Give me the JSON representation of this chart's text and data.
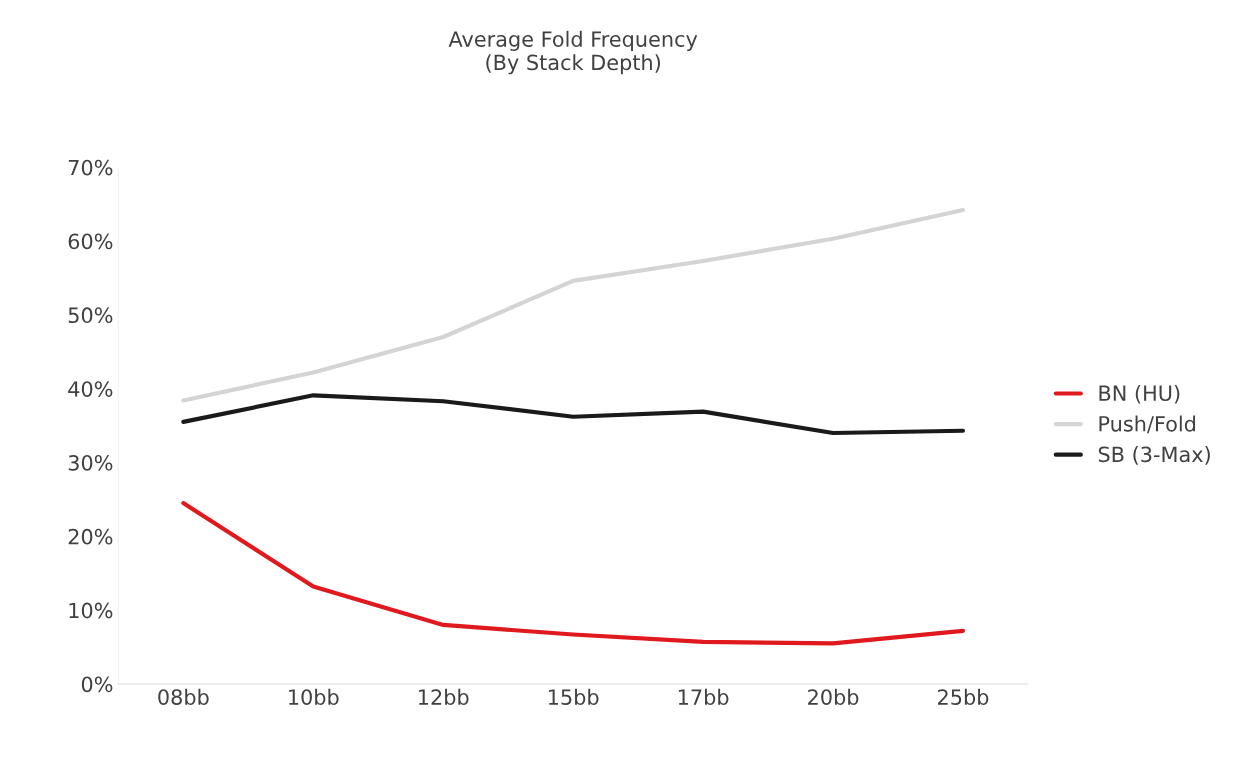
{
  "chart_data": {
    "type": "line",
    "title": "Average Fold Frequency\n(By Stack Depth)",
    "categories": [
      "08bb",
      "10bb",
      "12bb",
      "15bb",
      "17bb",
      "20bb",
      "25bb"
    ],
    "series": [
      {
        "name": "BN (HU)",
        "color": "#e0191e",
        "values": [
          24.5,
          13.2,
          8.0,
          6.7,
          5.7,
          5.5,
          7.2
        ]
      },
      {
        "name": "Push/Fold",
        "color": "#d4d4d4",
        "values": [
          38.4,
          42.2,
          47.0,
          54.6,
          57.3,
          60.3,
          64.2
        ]
      },
      {
        "name": "SB (3-Max)",
        "color": "#1a1a1a",
        "values": [
          35.5,
          39.1,
          38.3,
          36.2,
          36.9,
          34.0,
          34.3
        ]
      }
    ],
    "ylim": [
      0,
      70
    ],
    "yticks": [
      {
        "value": 0,
        "label": "0%"
      },
      {
        "value": 10,
        "label": "10%"
      },
      {
        "value": 20,
        "label": "20%"
      },
      {
        "value": 30,
        "label": "30%"
      },
      {
        "value": 40,
        "label": "40%"
      },
      {
        "value": 50,
        "label": "50%"
      },
      {
        "value": 60,
        "label": "60%"
      },
      {
        "value": 70,
        "label": "70%"
      }
    ],
    "grid": false,
    "legend": "right",
    "marker": "none",
    "line_style": "solid"
  }
}
